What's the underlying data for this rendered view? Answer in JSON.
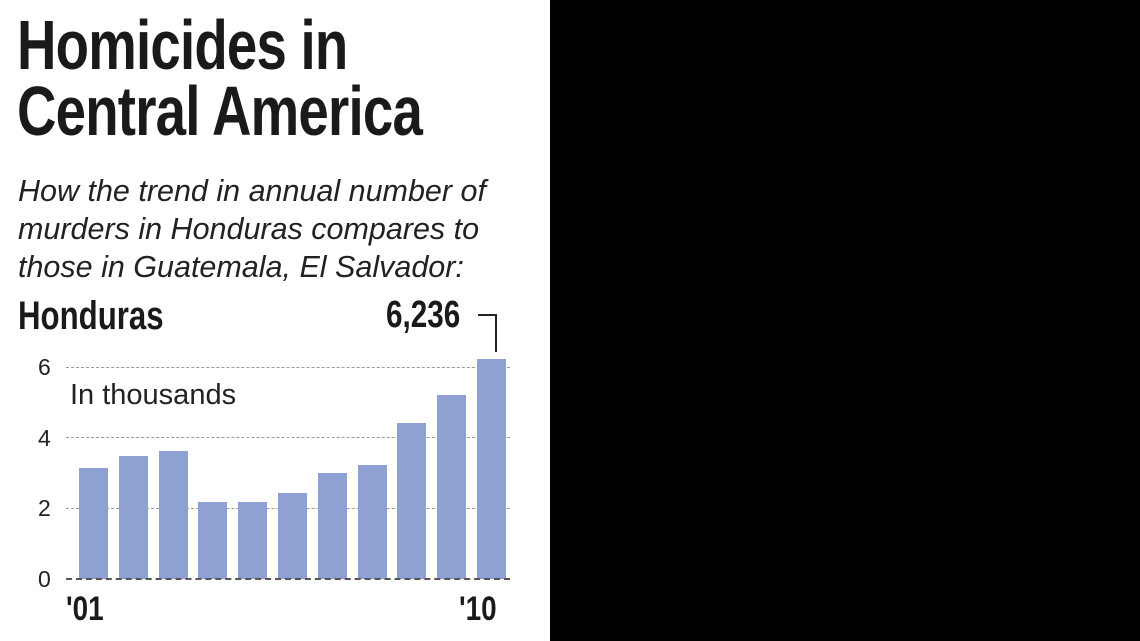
{
  "title_lines": [
    "Homicides in",
    "Central America"
  ],
  "subtitle_lines": [
    "How the trend in annual number of",
    "murders in Honduras compares to",
    "those in Guatemala, El Salvador:"
  ],
  "panel": {
    "country": "Honduras",
    "unit_label": "In thousands",
    "callout_value": "6,236",
    "bar_color": "#8fa0d2"
  },
  "chart_data": {
    "type": "bar",
    "title": "Homicides in Central America",
    "subtitle": "How the trend in annual number of murders in Honduras compares to those in Guatemala, El Salvador:",
    "series": [
      {
        "name": "Honduras",
        "values": [
          3.14,
          3.47,
          3.61,
          2.19,
          2.17,
          2.42,
          3.0,
          3.22,
          4.42,
          5.2,
          6.236
        ]
      }
    ],
    "categories": [
      "'01",
      "",
      "",
      "",
      "",
      "",
      "",
      "",
      "",
      "",
      "'10"
    ],
    "x_tick_labels": [
      "'01",
      "'10"
    ],
    "y_ticks": [
      "0",
      "2",
      "4",
      "6"
    ],
    "xlabel": "",
    "ylabel": "In thousands",
    "ylim": [
      0,
      6
    ],
    "grid": true,
    "annotations": [
      {
        "text": "6,236",
        "target_index": 10
      }
    ],
    "legend": null
  }
}
